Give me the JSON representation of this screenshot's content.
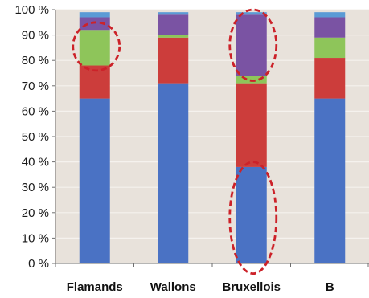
{
  "chart_data": {
    "type": "bar",
    "stacked": true,
    "normalized": true,
    "categories": [
      "Flamands",
      "Wallons",
      "Bruxellois",
      "B"
    ],
    "series": [
      {
        "values": [
          65,
          71,
          38,
          65
        ]
      },
      {
        "values": [
          13,
          18,
          33,
          16
        ]
      },
      {
        "values": [
          14,
          1,
          3,
          8
        ]
      },
      {
        "values": [
          5,
          8,
          24,
          8
        ]
      },
      {
        "values": [
          2,
          1,
          1,
          2
        ]
      }
    ],
    "y_ticks": [
      "0 %",
      "10 %",
      "20 %",
      "30 %",
      "40 %",
      "50 %",
      "60 %",
      "70 %",
      "80 %",
      "90 %",
      "100 %"
    ],
    "ylim": [
      0,
      100
    ],
    "grid": true,
    "legend": "none",
    "title": "",
    "xlabel": "",
    "ylabel": "",
    "highlights": [
      {
        "category": "Flamands",
        "from": 76,
        "to": 95
      },
      {
        "category": "Bruxellois",
        "from": 72,
        "to": 100
      },
      {
        "category": "Bruxellois",
        "from": -4,
        "to": 40
      }
    ]
  },
  "colors": {
    "plot_background": "#e8e2db",
    "gridline": "#f5f2ee",
    "axis": "#6f6f6f",
    "highlight_ellipse": "#cc2229",
    "series": [
      "#4a72c4",
      "#cc3d3b",
      "#8ec55a",
      "#7a53a3",
      "#5b9bd5"
    ]
  }
}
